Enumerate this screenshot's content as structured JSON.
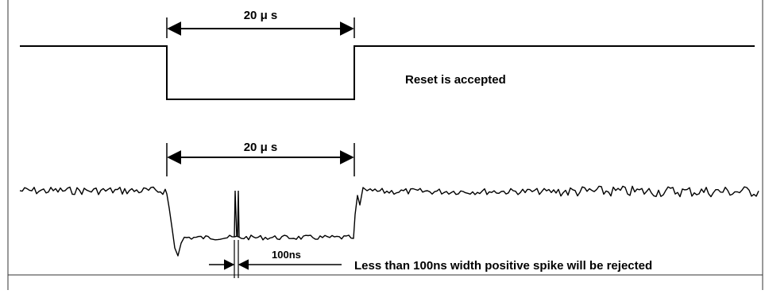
{
  "labels": {
    "top_width": "20 μ s",
    "bottom_width": "20 μ s",
    "reset_note": "Reset is accepted",
    "spike_width": "100ns",
    "spike_note": "Less than 100ns width positive spike will be rejected"
  },
  "colors": {
    "line": "#000000",
    "frame": "#333333",
    "background": "#ffffff"
  }
}
